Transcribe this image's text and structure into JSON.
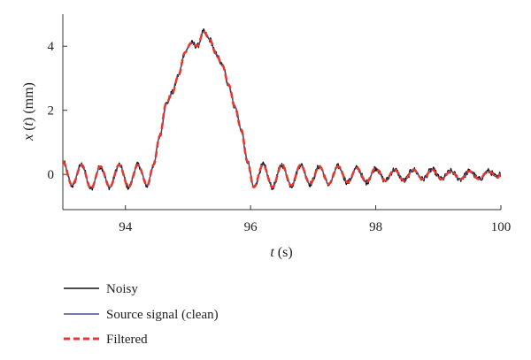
{
  "chart_data": {
    "type": "line",
    "title": "",
    "xlabel": {
      "var": "t",
      "unit": "(s)"
    },
    "ylabel": {
      "fn": "x",
      "arg": "t",
      "unit": "(mm)"
    },
    "xlim": [
      93,
      100
    ],
    "ylim": [
      -1.1,
      5.0
    ],
    "xticks": [
      94,
      96,
      98,
      100
    ],
    "yticks": [
      0,
      2,
      4
    ],
    "grid": false,
    "legend_position": "bottom-left",
    "series": [
      {
        "name": "Noisy",
        "color": "#111111",
        "style": "solid",
        "noise": 0.09
      },
      {
        "name": "Source signal (clean)",
        "color": "#4a4f8c",
        "style": "solid",
        "noise": 0.0
      },
      {
        "name": "Filtered",
        "color": "#e8382c",
        "style": "dashed",
        "noise": 0.0
      }
    ],
    "signal_points": [
      [
        93.0,
        0.4
      ],
      [
        93.15,
        -0.35
      ],
      [
        93.3,
        0.3
      ],
      [
        93.45,
        -0.45
      ],
      [
        93.6,
        0.25
      ],
      [
        93.75,
        -0.4
      ],
      [
        93.9,
        0.3
      ],
      [
        94.05,
        -0.4
      ],
      [
        94.2,
        0.3
      ],
      [
        94.35,
        -0.35
      ],
      [
        94.45,
        0.3
      ],
      [
        94.55,
        1.2
      ],
      [
        94.65,
        2.2
      ],
      [
        94.75,
        2.55
      ],
      [
        94.85,
        3.1
      ],
      [
        94.95,
        3.8
      ],
      [
        95.05,
        4.1
      ],
      [
        95.15,
        4.0
      ],
      [
        95.25,
        4.45
      ],
      [
        95.35,
        4.2
      ],
      [
        95.45,
        3.75
      ],
      [
        95.55,
        3.4
      ],
      [
        95.65,
        2.8
      ],
      [
        95.75,
        2.1
      ],
      [
        95.85,
        1.4
      ],
      [
        95.95,
        0.4
      ],
      [
        96.05,
        -0.4
      ],
      [
        96.2,
        0.3
      ],
      [
        96.35,
        -0.4
      ],
      [
        96.5,
        0.3
      ],
      [
        96.65,
        -0.35
      ],
      [
        96.8,
        0.3
      ],
      [
        96.95,
        -0.3
      ],
      [
        97.1,
        0.25
      ],
      [
        97.25,
        -0.3
      ],
      [
        97.4,
        0.25
      ],
      [
        97.55,
        -0.25
      ],
      [
        97.7,
        0.2
      ],
      [
        97.85,
        -0.25
      ],
      [
        98.0,
        0.2
      ],
      [
        98.15,
        -0.2
      ],
      [
        98.3,
        0.15
      ],
      [
        98.45,
        -0.2
      ],
      [
        98.6,
        0.15
      ],
      [
        98.75,
        -0.15
      ],
      [
        98.9,
        0.15
      ],
      [
        99.05,
        -0.15
      ],
      [
        99.2,
        0.1
      ],
      [
        99.35,
        -0.15
      ],
      [
        99.5,
        0.1
      ],
      [
        99.65,
        -0.15
      ],
      [
        99.8,
        0.1
      ],
      [
        99.95,
        -0.1
      ],
      [
        100.0,
        0.05
      ]
    ]
  }
}
